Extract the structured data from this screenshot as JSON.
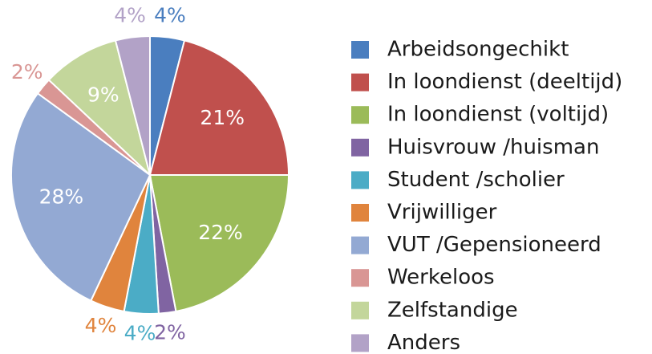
{
  "chart_data": {
    "type": "pie",
    "categories": [
      "Arbeidsongechikt",
      "In loondienst (deeltijd)",
      "In loondienst (voltijd)",
      "Huisvrouw /huisman",
      "Student /scholier",
      "Vrijwilliger",
      "VUT /Gepensioneerd",
      "Werkeloos",
      "Zelfstandige",
      "Anders"
    ],
    "values": [
      4,
      21,
      22,
      2,
      4,
      4,
      28,
      2,
      9,
      4
    ],
    "value_labels": [
      "4%",
      "21%",
      "22%",
      "2%",
      "4%",
      "4%",
      "28%",
      "2%",
      "9%",
      "4%"
    ],
    "colors": [
      "#4a7ebf",
      "#c0504d",
      "#9bbb59",
      "#8064a2",
      "#4bacc6",
      "#e0843d",
      "#93a9d3",
      "#d99694",
      "#c3d69b",
      "#b2a2c7"
    ],
    "legend": "right"
  }
}
